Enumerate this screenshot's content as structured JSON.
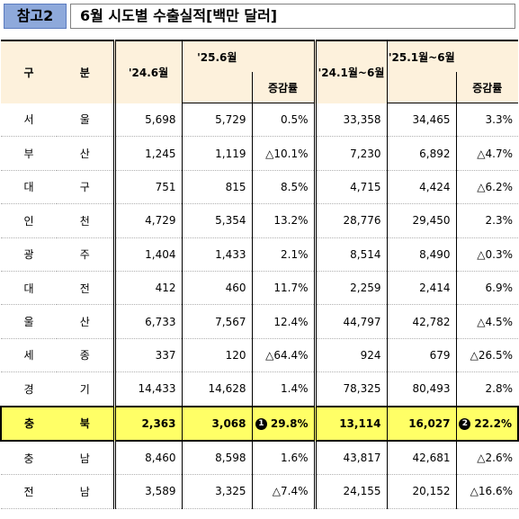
{
  "header": {
    "ref_label": "참고2",
    "title": "6월 시도별 수출실적[백만 달러]"
  },
  "table": {
    "col_gu": "구",
    "col_bun": "분",
    "col_24_6": "'24.6월",
    "col_25_6": "'25.6월",
    "col_rate1": "증감률",
    "col_24_ytd": "'24.1월~6월",
    "col_25_ytd": "'25.1월~6월",
    "col_rate2": "증감률",
    "rows": [
      {
        "a": "서",
        "b": "울",
        "v1": "5,698",
        "v2": "5,729",
        "r1": "0.5%",
        "v3": "33,358",
        "v4": "34,465",
        "r2": "3.3%"
      },
      {
        "a": "부",
        "b": "산",
        "v1": "1,245",
        "v2": "1,119",
        "r1": "△10.1%",
        "v3": "7,230",
        "v4": "6,892",
        "r2": "△4.7%"
      },
      {
        "a": "대",
        "b": "구",
        "v1": "751",
        "v2": "815",
        "r1": "8.5%",
        "v3": "4,715",
        "v4": "4,424",
        "r2": "△6.2%"
      },
      {
        "a": "인",
        "b": "천",
        "v1": "4,729",
        "v2": "5,354",
        "r1": "13.2%",
        "v3": "28,776",
        "v4": "29,450",
        "r2": "2.3%"
      },
      {
        "a": "광",
        "b": "주",
        "v1": "1,404",
        "v2": "1,433",
        "r1": "2.1%",
        "v3": "8,514",
        "v4": "8,490",
        "r2": "△0.3%"
      },
      {
        "a": "대",
        "b": "전",
        "v1": "412",
        "v2": "460",
        "r1": "11.7%",
        "v3": "2,259",
        "v4": "2,414",
        "r2": "6.9%"
      },
      {
        "a": "울",
        "b": "산",
        "v1": "6,733",
        "v2": "7,567",
        "r1": "12.4%",
        "v3": "44,797",
        "v4": "42,782",
        "r2": "△4.5%"
      },
      {
        "a": "세",
        "b": "종",
        "v1": "337",
        "v2": "120",
        "r1": "△64.4%",
        "v3": "924",
        "v4": "679",
        "r2": "△26.5%"
      },
      {
        "a": "경",
        "b": "기",
        "v1": "14,433",
        "v2": "14,628",
        "r1": "1.4%",
        "v3": "78,325",
        "v4": "80,493",
        "r2": "2.8%"
      },
      {
        "a": "충",
        "b": "북",
        "v1": "2,363",
        "v2": "3,068",
        "m1": "1",
        "r1": "29.8%",
        "v3": "13,114",
        "v4": "16,027",
        "m2": "2",
        "r2": "22.2%",
        "highlight": true
      },
      {
        "a": "충",
        "b": "남",
        "v1": "8,460",
        "v2": "8,598",
        "r1": "1.6%",
        "v3": "43,817",
        "v4": "42,681",
        "r2": "△2.6%"
      },
      {
        "a": "전",
        "b": "남",
        "v1": "3,589",
        "v2": "3,325",
        "r1": "△7.4%",
        "v3": "24,155",
        "v4": "20,152",
        "r2": "△16.6%"
      }
    ]
  }
}
